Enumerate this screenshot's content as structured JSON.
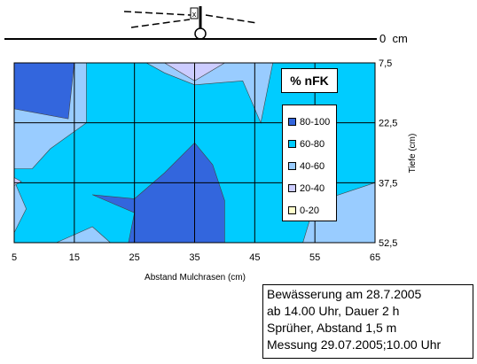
{
  "chart_data": {
    "type": "contour",
    "title": "",
    "xlabel": "Abstand Mulchrasen (cm)",
    "ylabel": "Tiefe (cm)",
    "x_ticks": [
      "5",
      "15",
      "25",
      "35",
      "45",
      "55",
      "65"
    ],
    "y_ticks": [
      "7,5",
      "22,5",
      "37,5",
      "52,5"
    ],
    "xlim": [
      5,
      65
    ],
    "ylim": [
      7.5,
      52.5
    ],
    "surface_zero_label": "0  cm",
    "legend": {
      "title": "% nFK",
      "entries": [
        {
          "label": "80-100",
          "color": "#3366dd"
        },
        {
          "label": "60-80",
          "color": "#00ccff"
        },
        {
          "label": "40-60",
          "color": "#99ccff"
        },
        {
          "label": "20-40",
          "color": "#ccccff"
        },
        {
          "label": "0-20",
          "color": "#ffffcc"
        }
      ]
    },
    "background_class": "60-80",
    "regions": [
      {
        "class": "40-60",
        "points": [
          [
            5,
            7.5
          ],
          [
            17,
            7.5
          ],
          [
            17,
            22.5
          ],
          [
            11,
            29
          ],
          [
            8,
            34
          ],
          [
            5,
            34
          ]
        ]
      },
      {
        "class": "80-100",
        "points": [
          [
            5,
            7.5
          ],
          [
            15,
            7.5
          ],
          [
            14,
            21.5
          ],
          [
            5,
            19
          ]
        ]
      },
      {
        "class": "40-60",
        "points": [
          [
            27,
            7.5
          ],
          [
            48,
            7.5
          ],
          [
            46,
            22.5
          ],
          [
            43,
            12
          ],
          [
            35,
            13
          ],
          [
            30,
            10
          ]
        ]
      },
      {
        "class": "20-40",
        "points": [
          [
            30,
            7.5
          ],
          [
            40,
            7.5
          ],
          [
            35,
            12
          ]
        ]
      },
      {
        "class": "40-60",
        "points": [
          [
            5,
            37
          ],
          [
            5,
            50
          ],
          [
            7,
            44
          ]
        ]
      },
      {
        "class": "20-40",
        "points": [
          [
            5,
            36.2
          ],
          [
            5,
            38.2
          ],
          [
            6.2,
            37.2
          ]
        ]
      },
      {
        "class": "40-60",
        "points": [
          [
            12,
            52.5
          ],
          [
            18,
            48.5
          ],
          [
            21,
            52.5
          ]
        ]
      },
      {
        "class": "80-100",
        "points": [
          [
            18,
            40.5
          ],
          [
            25,
            41.5
          ],
          [
            30,
            35
          ],
          [
            35,
            27.5
          ],
          [
            38,
            33
          ],
          [
            40,
            42
          ],
          [
            40,
            52.5
          ],
          [
            24,
            52.5
          ],
          [
            25,
            45
          ]
        ]
      },
      {
        "class": "40-60",
        "points": [
          [
            53,
            52.5
          ],
          [
            55,
            42.5
          ],
          [
            65,
            37.5
          ],
          [
            65,
            52.5
          ]
        ]
      }
    ]
  },
  "sprinkler": {
    "label": "x"
  },
  "info_box": {
    "lines": [
      "Bewässerung am 28.7.2005",
      "ab 14.00 Uhr, Dauer 2 h",
      "Sprüher, Abstand 1,5 m",
      "Messung 29.07.2005;10.00 Uhr"
    ]
  }
}
